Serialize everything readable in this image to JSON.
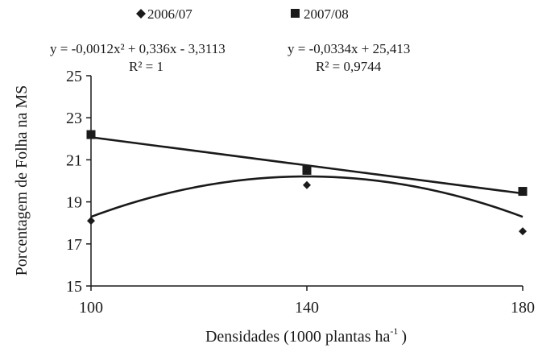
{
  "chart_data": {
    "type": "scatter",
    "xlabel": "Densidades (1000 plantas ha",
    "xlabel_sup": "-1",
    "xlabel_close": ")",
    "ylabel": "Porcentagem de Folha na MS",
    "x_ticks": [
      "100",
      "140",
      "180"
    ],
    "y_ticks": [
      "15",
      "17",
      "19",
      "21",
      "23",
      "25"
    ],
    "xlim": [
      100,
      180
    ],
    "ylim": [
      15,
      25
    ],
    "grid": false,
    "legend_position": "top",
    "series": [
      {
        "name": "2006/07",
        "marker": "diamond",
        "x": [
          100,
          140,
          180
        ],
        "y": [
          18.1,
          19.8,
          17.6
        ],
        "fit": {
          "type": "quadratic",
          "a": -0.0012,
          "b": 0.336,
          "c": -3.3113
        },
        "equation": "y = -0,0012x² + 0,336x - 3,3113",
        "r2": "R² = 1"
      },
      {
        "name": "2007/08",
        "marker": "square",
        "x": [
          100,
          140,
          180
        ],
        "y": [
          22.2,
          20.5,
          19.5
        ],
        "fit": {
          "type": "linear",
          "a": -0.0334,
          "b": 25.413
        },
        "equation": "y = -0,0334x + 25,413",
        "r2": "R² = 0,9744"
      }
    ]
  },
  "colors": {
    "ink": "#1a1a1a",
    "background": "#ffffff"
  }
}
